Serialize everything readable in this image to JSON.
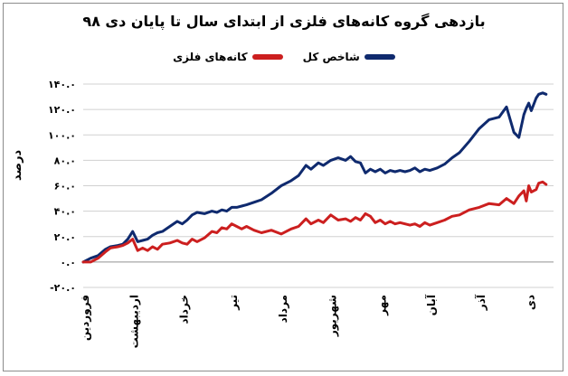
{
  "chart_data": {
    "type": "line",
    "title": "بازدهی گروه کانه‌های فلزی از ابتدای سال تا پایان دی ۹۸",
    "ylabel": "درصد",
    "xlabel": "",
    "ylim": [
      -20,
      140
    ],
    "yticks": [
      -20,
      0,
      20,
      40,
      60,
      80,
      100,
      120,
      140
    ],
    "ytick_labels": [
      "-۲۰.۰",
      "۰.۰",
      "۲۰.۰",
      "۴۰.۰",
      "۶۰.۰",
      "۸۰.۰",
      "۱۰۰.۰",
      "۱۲۰.۰",
      "۱۴۰.۰"
    ],
    "categories": [
      "فروردین",
      "اردیبهشت",
      "خرداد",
      "تیر",
      "مرداد",
      "شهریور",
      "مهر",
      "آبان",
      "آذر",
      "دی"
    ],
    "grid": true,
    "legend": "top",
    "series": [
      {
        "name": "شاخص کل",
        "color": "#0f2a6e",
        "x": [
          0,
          0.15,
          0.3,
          0.45,
          0.55,
          0.7,
          0.8,
          0.9,
          1.0,
          1.1,
          1.2,
          1.3,
          1.4,
          1.5,
          1.6,
          1.75,
          1.9,
          2.0,
          2.1,
          2.2,
          2.3,
          2.45,
          2.6,
          2.7,
          2.8,
          2.9,
          3.0,
          3.1,
          3.2,
          3.3,
          3.45,
          3.6,
          3.8,
          4.0,
          4.2,
          4.35,
          4.5,
          4.6,
          4.75,
          4.85,
          5.0,
          5.15,
          5.3,
          5.4,
          5.5,
          5.6,
          5.7,
          5.8,
          5.9,
          6.0,
          6.1,
          6.2,
          6.3,
          6.4,
          6.5,
          6.6,
          6.7,
          6.8,
          6.9,
          7.0,
          7.15,
          7.3,
          7.45,
          7.6,
          7.8,
          8.0,
          8.2,
          8.4,
          8.55,
          8.7,
          8.8,
          8.9,
          8.95,
          9.0,
          9.05,
          9.15,
          9.2,
          9.28,
          9.35
        ],
        "values": [
          0,
          3,
          5,
          10,
          12,
          13,
          14,
          18,
          24,
          16,
          17,
          18,
          21,
          23,
          24,
          28,
          32,
          30,
          33,
          37,
          39,
          38,
          40,
          39,
          41,
          40,
          43,
          43,
          44,
          45,
          47,
          49,
          54,
          60,
          64,
          68,
          76,
          73,
          78,
          76,
          80,
          82,
          80,
          83,
          79,
          78,
          70,
          73,
          71,
          73,
          70,
          72,
          71,
          72,
          71,
          72,
          74,
          71,
          73,
          72,
          74,
          77,
          82,
          86,
          95,
          105,
          112,
          114,
          122,
          102,
          98,
          116,
          121,
          125,
          119,
          129,
          132,
          133,
          132
        ]
      },
      {
        "name": "کانه‌های فلزی",
        "color": "#cc1f1f",
        "x": [
          0,
          0.15,
          0.3,
          0.45,
          0.55,
          0.7,
          0.8,
          0.9,
          1.0,
          1.1,
          1.2,
          1.3,
          1.4,
          1.5,
          1.6,
          1.75,
          1.9,
          2.0,
          2.1,
          2.2,
          2.3,
          2.45,
          2.6,
          2.7,
          2.8,
          2.9,
          3.0,
          3.1,
          3.2,
          3.3,
          3.45,
          3.6,
          3.8,
          4.0,
          4.2,
          4.35,
          4.5,
          4.6,
          4.75,
          4.85,
          5.0,
          5.15,
          5.3,
          5.4,
          5.5,
          5.6,
          5.7,
          5.8,
          5.9,
          6.0,
          6.1,
          6.2,
          6.3,
          6.4,
          6.5,
          6.6,
          6.7,
          6.8,
          6.9,
          7.0,
          7.15,
          7.3,
          7.45,
          7.6,
          7.8,
          8.0,
          8.2,
          8.4,
          8.55,
          8.7,
          8.8,
          8.9,
          8.95,
          9.0,
          9.05,
          9.15,
          9.2,
          9.28,
          9.35
        ],
        "values": [
          0,
          0,
          3,
          8,
          11,
          12,
          13,
          15,
          18,
          9,
          11,
          9,
          12,
          10,
          14,
          15,
          17,
          15,
          14,
          18,
          16,
          19,
          24,
          23,
          27,
          26,
          30,
          28,
          26,
          28,
          25,
          23,
          25,
          22,
          26,
          28,
          34,
          30,
          33,
          31,
          37,
          33,
          34,
          32,
          35,
          33,
          38,
          36,
          31,
          33,
          30,
          32,
          30,
          31,
          30,
          29,
          30,
          28,
          31,
          29,
          31,
          33,
          36,
          37,
          41,
          43,
          46,
          45,
          50,
          46,
          52,
          56,
          48,
          60,
          55,
          57,
          62,
          63,
          61
        ]
      }
    ]
  }
}
